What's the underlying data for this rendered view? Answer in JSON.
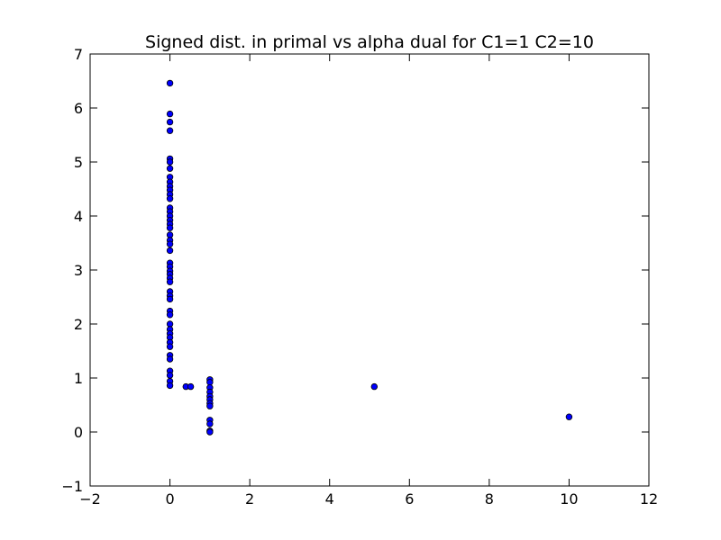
{
  "chart_data": {
    "type": "scatter",
    "title": "Signed dist. in primal vs alpha dual for C1=1 C2=10",
    "xlabel": "",
    "ylabel": "",
    "xlim": [
      -2,
      12
    ],
    "ylim": [
      -1,
      7
    ],
    "x_ticks": [
      -2,
      0,
      2,
      4,
      6,
      8,
      10,
      12
    ],
    "y_ticks": [
      -1,
      0,
      1,
      2,
      3,
      4,
      5,
      6,
      7
    ],
    "x_tick_labels": [
      "−2",
      "0",
      "2",
      "4",
      "6",
      "8",
      "10",
      "12"
    ],
    "y_tick_labels": [
      "−1",
      "0",
      "1",
      "2",
      "3",
      "4",
      "5",
      "6",
      "7"
    ],
    "grid": false,
    "legend": "none",
    "marker_color": "#0000ff",
    "marker_edge_color": "#000000",
    "series": [
      {
        "points": [
          [
            0,
            6.46
          ],
          [
            0,
            5.89
          ],
          [
            0,
            5.74
          ],
          [
            0,
            5.58
          ],
          [
            0,
            5.06
          ],
          [
            0,
            5.0
          ],
          [
            0,
            4.88
          ],
          [
            0,
            4.72
          ],
          [
            0,
            4.63
          ],
          [
            0,
            4.55
          ],
          [
            0,
            4.48
          ],
          [
            0,
            4.4
          ],
          [
            0,
            4.32
          ],
          [
            0,
            4.15
          ],
          [
            0,
            4.08
          ],
          [
            0,
            4.0
          ],
          [
            0,
            3.92
          ],
          [
            0,
            3.85
          ],
          [
            0,
            3.78
          ],
          [
            0,
            3.65
          ],
          [
            0,
            3.55
          ],
          [
            0,
            3.48
          ],
          [
            0,
            3.36
          ],
          [
            0,
            3.13
          ],
          [
            0,
            3.06
          ],
          [
            0,
            2.98
          ],
          [
            0,
            2.92
          ],
          [
            0,
            2.85
          ],
          [
            0,
            2.78
          ],
          [
            0,
            2.6
          ],
          [
            0,
            2.52
          ],
          [
            0,
            2.46
          ],
          [
            0,
            2.24
          ],
          [
            0,
            2.17
          ],
          [
            0,
            2.0
          ],
          [
            0,
            1.9
          ],
          [
            0,
            1.82
          ],
          [
            0,
            1.75
          ],
          [
            0,
            1.66
          ],
          [
            0,
            1.58
          ],
          [
            0,
            1.42
          ],
          [
            0,
            1.35
          ],
          [
            0,
            1.13
          ],
          [
            0,
            1.05
          ],
          [
            0,
            0.94
          ],
          [
            0,
            0.86
          ],
          [
            0.4,
            0.84
          ],
          [
            0.52,
            0.84
          ],
          [
            1,
            0.97
          ],
          [
            1,
            0.92
          ],
          [
            1,
            0.82
          ],
          [
            1,
            0.74
          ],
          [
            1,
            0.66
          ],
          [
            1,
            0.6
          ],
          [
            1,
            0.53
          ],
          [
            1,
            0.48
          ],
          [
            1,
            0.22
          ],
          [
            1,
            0.15
          ],
          [
            1,
            0.02
          ],
          [
            1,
            0.0
          ],
          [
            5.12,
            0.84
          ],
          [
            10.0,
            0.28
          ]
        ]
      }
    ]
  }
}
